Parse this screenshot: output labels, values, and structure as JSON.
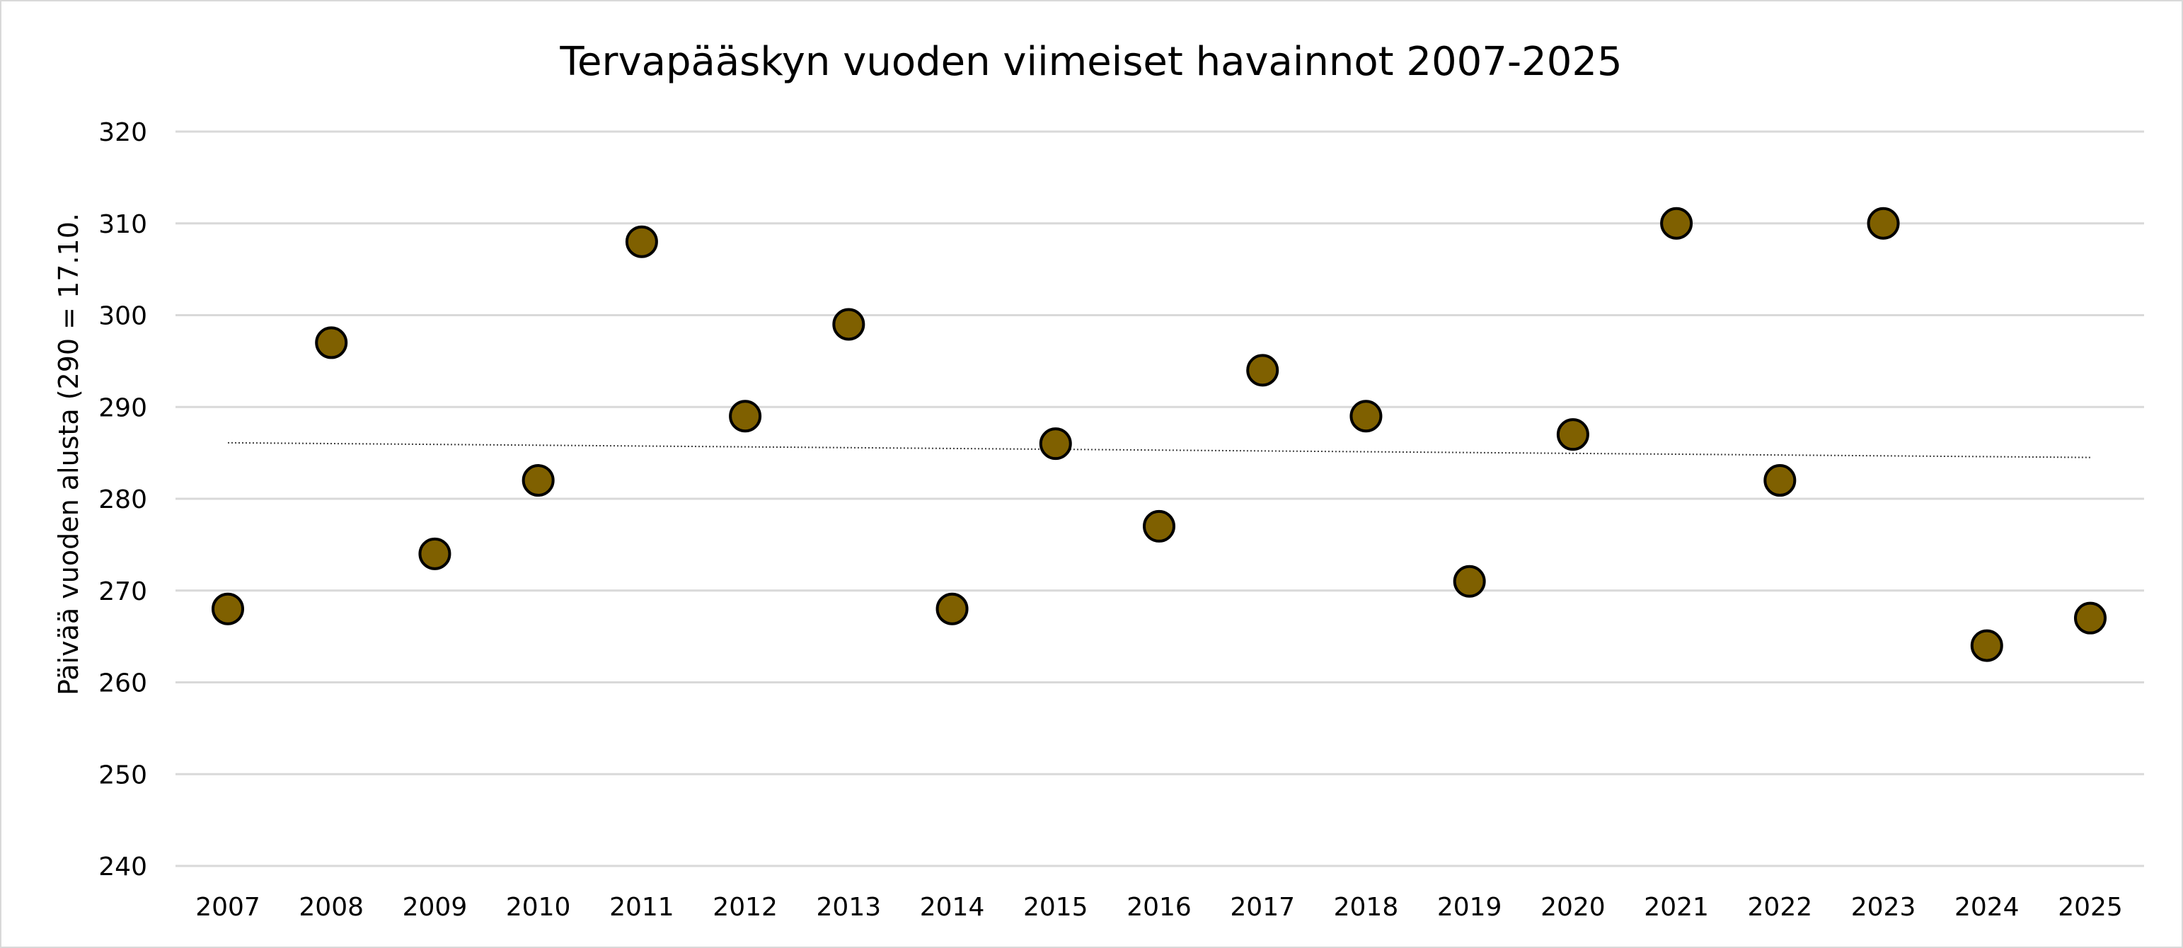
{
  "chart_data": {
    "type": "scatter",
    "title": "Tervapääskyn vuoden viimeiset havainnot 2007-2025",
    "xlabel": "",
    "ylabel": "Päivää vuoden alusta (290 = 17.10.",
    "ylim": [
      240,
      320
    ],
    "yticks": [
      240,
      250,
      260,
      270,
      280,
      290,
      300,
      310,
      320
    ],
    "categories": [
      "2007",
      "2008",
      "2009",
      "2010",
      "2011",
      "2012",
      "2013",
      "2014",
      "2015",
      "2016",
      "2017",
      "2018",
      "2019",
      "2020",
      "2021",
      "2022",
      "2023",
      "2024",
      "2025"
    ],
    "series": [
      {
        "values": [
          268,
          297,
          274,
          282,
          308,
          289,
          299,
          268,
          286,
          277,
          294,
          289,
          271,
          287,
          310,
          282,
          310,
          264,
          267
        ]
      }
    ],
    "trendline": {
      "type": "linear",
      "style": "dotted",
      "start": 286.1,
      "end": 284.5
    },
    "grid": "horizontal",
    "legend": "none",
    "colors": {
      "marker_fill": "#7f6000",
      "marker_stroke": "#000000",
      "gridline": "#d9d9d9",
      "trendline": "#404040",
      "border": "#d9d9d9"
    }
  }
}
